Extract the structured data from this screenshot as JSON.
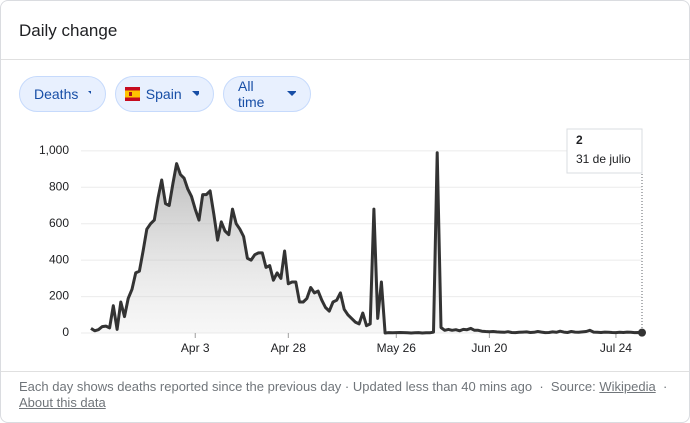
{
  "header": {
    "title": "Daily change"
  },
  "filters": {
    "metric": "Deaths",
    "country": "Spain",
    "range": "All time"
  },
  "tooltip": {
    "date": "31 de julio"
  },
  "chart_data": {
    "type": "area",
    "categories": [
      null,
      null,
      null,
      null,
      null,
      null,
      null,
      null,
      null,
      null,
      null,
      null,
      null,
      null,
      null,
      null,
      null,
      null,
      null,
      null,
      null,
      null,
      null,
      null,
      null,
      null,
      null,
      null,
      "Apr 3",
      null,
      null,
      null,
      null,
      null,
      null,
      null,
      null,
      null,
      null,
      null,
      null,
      null,
      null,
      null,
      null,
      null,
      null,
      null,
      null,
      null,
      null,
      null,
      null,
      "Apr 28",
      null,
      null,
      null,
      null,
      null,
      null,
      null,
      null,
      null,
      null,
      null,
      null,
      null,
      null,
      null,
      null,
      null,
      null,
      null,
      null,
      null,
      null,
      null,
      null,
      null,
      null,
      null,
      null,
      "May 26",
      null,
      null,
      null,
      null,
      null,
      null,
      null,
      null,
      null,
      null,
      null,
      null,
      null,
      null,
      null,
      null,
      null,
      null,
      null,
      null,
      null,
      null,
      null,
      null,
      "Jun 20",
      null,
      null,
      null,
      null,
      null,
      null,
      null,
      null,
      null,
      null,
      null,
      null,
      null,
      null,
      null,
      null,
      null,
      null,
      null,
      null,
      null,
      null,
      null,
      null,
      null,
      null,
      null,
      null,
      null,
      null,
      null,
      null,
      null,
      "Jul 24",
      null,
      null,
      null,
      null,
      null,
      null,
      null
    ],
    "values": [
      25,
      12,
      18,
      35,
      38,
      28,
      150,
      20,
      170,
      90,
      190,
      240,
      330,
      340,
      450,
      570,
      600,
      620,
      740,
      840,
      710,
      700,
      820,
      930,
      870,
      850,
      790,
      750,
      680,
      620,
      760,
      760,
      780,
      650,
      510,
      610,
      560,
      540,
      680,
      600,
      570,
      530,
      410,
      400,
      430,
      440,
      440,
      360,
      370,
      290,
      330,
      300,
      450,
      270,
      280,
      280,
      170,
      170,
      190,
      250,
      220,
      230,
      180,
      140,
      120,
      170,
      180,
      220,
      130,
      100,
      80,
      60,
      50,
      110,
      40,
      50,
      680,
      80,
      280,
      0,
      2,
      1,
      2,
      3,
      2,
      1,
      0,
      1,
      2,
      0,
      1,
      1,
      5,
      990,
      30,
      15,
      20,
      15,
      18,
      12,
      20,
      18,
      25,
      15,
      15,
      10,
      8,
      7,
      8,
      6,
      5,
      4,
      7,
      3,
      2,
      4,
      5,
      6,
      3,
      4,
      8,
      5,
      2,
      3,
      6,
      4,
      10,
      5,
      3,
      8,
      5,
      4,
      6,
      8,
      15,
      5,
      4,
      3,
      5,
      4,
      3,
      2,
      4,
      3,
      5,
      4,
      2,
      3,
      2
    ],
    "color": "#333333",
    "ylim": [
      0,
      1120
    ],
    "yticks": [
      0,
      200,
      400,
      600,
      800,
      {
        "value": 1000,
        "label": "1,000"
      }
    ],
    "grid": true
  },
  "footer": {
    "note": "Each day shows deaths reported since the previous day · Updated less than 40 mins ago",
    "separator": "·",
    "source_label": "Source:",
    "source": "Wikipedia",
    "about": "About this data"
  }
}
